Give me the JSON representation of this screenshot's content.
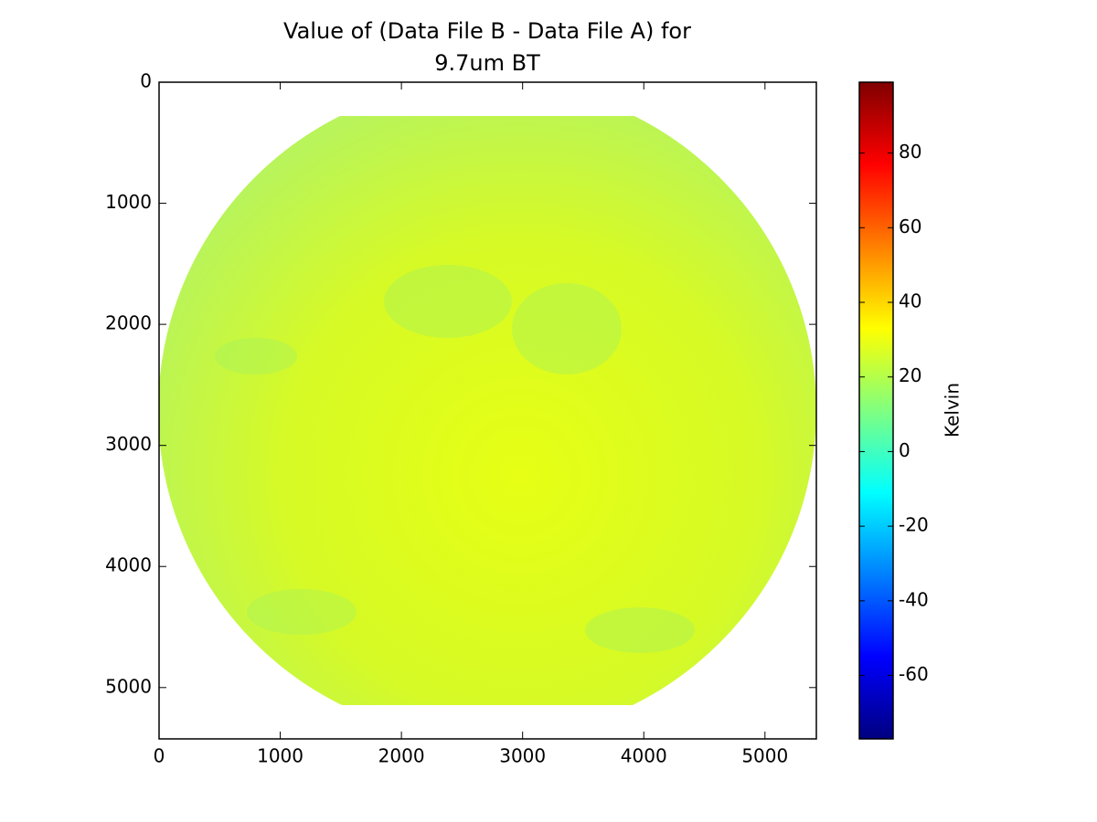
{
  "chart_data": {
    "type": "image",
    "title": [
      "Value of (Data File B - Data File A) for",
      "9.7um BT"
    ],
    "xlim": [
      0,
      5424
    ],
    "xticks": [
      0,
      1000,
      2000,
      3000,
      4000,
      5000
    ],
    "ylim": [
      5424,
      0
    ],
    "yticks": [
      0,
      1000,
      2000,
      3000,
      4000,
      5000
    ],
    "colormap": "jet",
    "clim": [
      -77,
      99
    ],
    "cticks": [
      -60,
      -40,
      -20,
      0,
      20,
      40,
      60,
      80
    ],
    "colorbar_label": "Kelvin"
  }
}
